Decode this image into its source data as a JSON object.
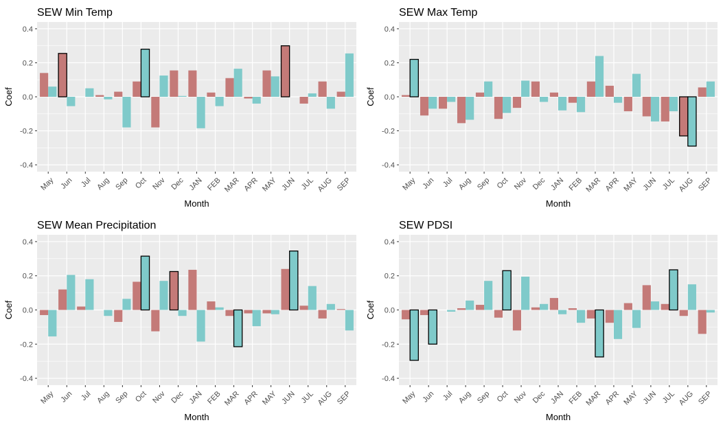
{
  "colors": {
    "series_a": "#C47A78",
    "series_b": "#7FCACA",
    "panel_bg": "#EBEBEB",
    "grid": "#FFFFFF",
    "highlight_stroke": "#000000"
  },
  "months": [
    "May",
    "Jun",
    "Jul",
    "Aug",
    "Sep",
    "Oct",
    "Nov",
    "Dec",
    "JAN",
    "FEB",
    "MAR",
    "APR",
    "MAY",
    "JUN",
    "JUL",
    "AUG",
    "SEP"
  ],
  "chart_data": [
    {
      "type": "bar",
      "title": "SEW Min Temp",
      "xlabel": "Month",
      "ylabel": "Coef",
      "ylim": [
        -0.44,
        0.44
      ],
      "yticks": [
        -0.4,
        -0.2,
        0.0,
        0.2,
        0.4
      ],
      "ytick_labels": [
        "-0.4",
        "-0.2",
        "0.0",
        "0.2",
        "0.4"
      ],
      "categories": [
        "May",
        "Jun",
        "Jul",
        "Aug",
        "Sep",
        "Oct",
        "Nov",
        "Dec",
        "JAN",
        "FEB",
        "MAR",
        "APR",
        "MAY",
        "JUN",
        "JUL",
        "AUG",
        "SEP"
      ],
      "grid": true,
      "legend": "none",
      "series": [
        {
          "values": [
            0.14,
            0.255,
            0.0,
            0.01,
            0.03,
            0.09,
            -0.18,
            0.155,
            0.155,
            0.025,
            0.11,
            -0.01,
            0.155,
            0.3,
            -0.04,
            0.09,
            0.03
          ],
          "highlighted": [
            false,
            true,
            false,
            false,
            false,
            false,
            false,
            false,
            false,
            false,
            false,
            false,
            false,
            true,
            false,
            false,
            false
          ]
        },
        {
          "values": [
            0.06,
            -0.055,
            0.05,
            -0.015,
            -0.18,
            0.28,
            0.125,
            0.005,
            -0.185,
            -0.055,
            0.165,
            -0.04,
            0.12,
            0.0,
            0.02,
            -0.07,
            0.255
          ],
          "highlighted": [
            false,
            false,
            false,
            false,
            false,
            true,
            false,
            false,
            false,
            false,
            false,
            false,
            false,
            false,
            false,
            false,
            false
          ]
        }
      ]
    },
    {
      "type": "bar",
      "title": "SEW Max Temp",
      "xlabel": "Month",
      "ylabel": "Coef",
      "ylim": [
        -0.44,
        0.44
      ],
      "yticks": [
        -0.4,
        -0.2,
        0.0,
        0.2,
        0.4
      ],
      "ytick_labels": [
        "-0.4",
        "-0.2",
        "0.0",
        "0.2",
        "0.4"
      ],
      "categories": [
        "May",
        "Jun",
        "Jul",
        "Aug",
        "Sep",
        "Oct",
        "Nov",
        "Dec",
        "JAN",
        "FEB",
        "MAR",
        "APR",
        "MAY",
        "JUN",
        "JUL",
        "AUG",
        "SEP"
      ],
      "grid": true,
      "legend": "none",
      "series": [
        {
          "values": [
            0.01,
            -0.11,
            -0.07,
            -0.155,
            0.025,
            -0.13,
            -0.065,
            0.09,
            0.025,
            -0.035,
            0.09,
            0.065,
            -0.085,
            -0.115,
            -0.145,
            -0.23,
            0.055
          ],
          "highlighted": [
            false,
            false,
            false,
            false,
            false,
            false,
            false,
            false,
            false,
            false,
            false,
            false,
            false,
            false,
            false,
            true,
            false
          ]
        },
        {
          "values": [
            0.22,
            -0.07,
            -0.03,
            -0.135,
            0.09,
            -0.095,
            0.095,
            -0.03,
            -0.08,
            -0.09,
            0.24,
            -0.035,
            0.135,
            -0.145,
            -0.085,
            -0.29,
            0.09
          ],
          "highlighted": [
            true,
            false,
            false,
            false,
            false,
            false,
            false,
            false,
            false,
            false,
            false,
            false,
            false,
            false,
            false,
            true,
            false
          ]
        }
      ]
    },
    {
      "type": "bar",
      "title": "SEW Mean Precipitation",
      "xlabel": "Month",
      "ylabel": "Coef",
      "ylim": [
        -0.44,
        0.44
      ],
      "yticks": [
        -0.4,
        -0.2,
        0.0,
        0.2,
        0.4
      ],
      "ytick_labels": [
        "-0.4",
        "-0.2",
        "0.0",
        "0.2",
        "0.4"
      ],
      "categories": [
        "May",
        "Jun",
        "Jul",
        "Aug",
        "Sep",
        "Oct",
        "Nov",
        "Dec",
        "JAN",
        "FEB",
        "MAR",
        "APR",
        "MAY",
        "JUN",
        "JUL",
        "AUG",
        "SEP"
      ],
      "grid": true,
      "legend": "none",
      "series": [
        {
          "values": [
            -0.03,
            0.12,
            0.02,
            0.0,
            -0.07,
            0.165,
            -0.125,
            0.225,
            0.235,
            0.05,
            -0.035,
            -0.02,
            -0.02,
            0.24,
            0.025,
            -0.05,
            0.005
          ],
          "highlighted": [
            false,
            false,
            false,
            false,
            false,
            false,
            false,
            true,
            false,
            false,
            false,
            false,
            false,
            false,
            false,
            false,
            false
          ]
        },
        {
          "values": [
            -0.155,
            0.205,
            0.18,
            -0.035,
            0.065,
            0.315,
            0.17,
            -0.035,
            -0.185,
            0.015,
            -0.215,
            -0.095,
            -0.025,
            0.345,
            0.14,
            0.035,
            -0.12
          ],
          "highlighted": [
            false,
            false,
            false,
            false,
            false,
            true,
            false,
            false,
            false,
            false,
            true,
            false,
            false,
            true,
            false,
            false,
            false
          ]
        }
      ]
    },
    {
      "type": "bar",
      "title": "SEW PDSI",
      "xlabel": "Month",
      "ylabel": "Coef",
      "ylim": [
        -0.44,
        0.44
      ],
      "yticks": [
        -0.4,
        -0.2,
        0.0,
        0.2,
        0.4
      ],
      "ytick_labels": [
        "-0.4",
        "-0.2",
        "0.0",
        "0.2",
        "0.4"
      ],
      "categories": [
        "May",
        "Jun",
        "Jul",
        "Aug",
        "Sep",
        "Oct",
        "Nov",
        "Dec",
        "JAN",
        "FEB",
        "MAR",
        "APR",
        "MAY",
        "JUN",
        "JUL",
        "AUG",
        "SEP"
      ],
      "grid": true,
      "legend": "none",
      "series": [
        {
          "values": [
            -0.055,
            -0.03,
            0.0,
            0.01,
            0.03,
            -0.045,
            -0.12,
            0.015,
            0.07,
            0.01,
            -0.05,
            -0.075,
            0.04,
            0.145,
            0.035,
            -0.035,
            -0.14
          ],
          "highlighted": [
            false,
            false,
            false,
            false,
            false,
            false,
            false,
            false,
            false,
            false,
            false,
            false,
            false,
            false,
            false,
            false,
            false
          ]
        },
        {
          "values": [
            -0.295,
            -0.2,
            -0.01,
            0.055,
            0.17,
            0.23,
            0.195,
            0.035,
            -0.025,
            -0.075,
            -0.275,
            -0.17,
            -0.105,
            0.05,
            0.235,
            0.15,
            -0.015
          ],
          "highlighted": [
            true,
            true,
            false,
            false,
            false,
            true,
            false,
            false,
            false,
            false,
            true,
            false,
            false,
            false,
            true,
            false,
            false
          ]
        }
      ]
    }
  ]
}
